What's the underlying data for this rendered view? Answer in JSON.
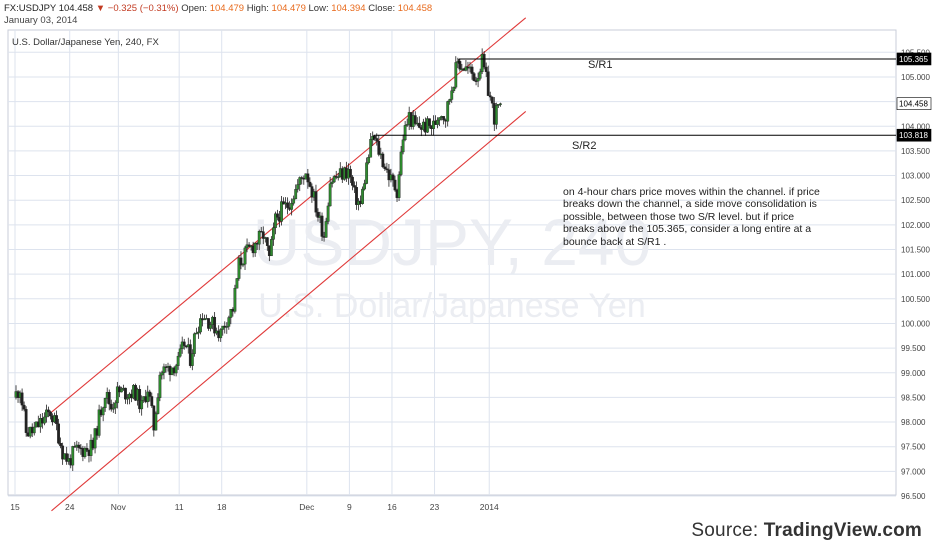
{
  "header": {
    "symbol": "FX:USDJPY",
    "last": "104.458",
    "change": "−0.325 (−0.31%)",
    "open_label": "Open:",
    "open": "104.479",
    "high_label": "High:",
    "high": "104.479",
    "low_label": "Low:",
    "low": "104.394",
    "close_label": "Close:",
    "close": "104.458",
    "date": "January 03, 2014"
  },
  "chart_title": "U.S. Dollar/Japanese Yen, 240, FX",
  "watermark": {
    "symbol": "USDJPY, 240",
    "name": "U.S. Dollar/Japanese Yen"
  },
  "annotations": {
    "sr1": "S/R1",
    "sr2": "S/R2",
    "note": "on 4-hour chars price moves within the channel. if price breaks down the channel, a side move consolidation is possible, between those two S/R level. but if price breaks above the 105.365, consider a long entire at a bounce back at S/R1 ."
  },
  "source": {
    "prefix": "Source: ",
    "brand": "TradingView.com"
  },
  "colors": {
    "up": "#2e8b2e",
    "down": "#222222",
    "channel": "#e03a3a",
    "grid": "#dde3ee",
    "price_tag": "#000000"
  },
  "chart_data": {
    "type": "candlestick",
    "timeframe": "240",
    "x_tick_labels": [
      "15",
      "24",
      "Nov",
      "11",
      "18",
      "Dec",
      "9",
      "16",
      "23",
      "2014"
    ],
    "y_tick_labels": [
      "105.500",
      "105.000",
      "104.500",
      "104.000",
      "103.500",
      "103.000",
      "102.500",
      "102.000",
      "101.500",
      "101.000",
      "100.500",
      "100.000",
      "99.500",
      "99.000",
      "98.500",
      "98.000",
      "97.500",
      "97.000",
      "96.500"
    ],
    "ylim": [
      96.5,
      105.5
    ],
    "grid": true,
    "price_labels": [
      "105.365",
      "104.458",
      "103.818"
    ],
    "levels": [
      {
        "name": "S/R1",
        "value": 105.365,
        "from_date": "2013-12-27"
      },
      {
        "name": "S/R2",
        "value": 103.818,
        "from_date": "2013-12-13"
      }
    ],
    "channel": {
      "upper": [
        {
          "date": "2013-10-21",
          "value": 98.2
        },
        {
          "date": "2014-01-07",
          "value": 106.2
        }
      ],
      "lower": [
        {
          "date": "2013-10-21",
          "value": 96.2
        },
        {
          "date": "2014-01-07",
          "value": 104.3
        }
      ]
    },
    "path": [
      {
        "date": "2013-10-15",
        "value": 98.5
      },
      {
        "date": "2013-10-16",
        "value": 98.7
      },
      {
        "date": "2013-10-17",
        "value": 97.8
      },
      {
        "date": "2013-10-18",
        "value": 97.8
      },
      {
        "date": "2013-10-21",
        "value": 98.2
      },
      {
        "date": "2013-10-22",
        "value": 97.9
      },
      {
        "date": "2013-10-23",
        "value": 97.4
      },
      {
        "date": "2013-10-24",
        "value": 97.2
      },
      {
        "date": "2013-10-25",
        "value": 97.4
      },
      {
        "date": "2013-10-28",
        "value": 97.5
      },
      {
        "date": "2013-10-29",
        "value": 98.1
      },
      {
        "date": "2013-10-30",
        "value": 98.6
      },
      {
        "date": "2013-10-31",
        "value": 98.3
      },
      {
        "date": "2013-11-01",
        "value": 98.6
      },
      {
        "date": "2013-11-04",
        "value": 98.6
      },
      {
        "date": "2013-11-05",
        "value": 98.3
      },
      {
        "date": "2013-11-06",
        "value": 98.7
      },
      {
        "date": "2013-11-07",
        "value": 97.9
      },
      {
        "date": "2013-11-08",
        "value": 99.0
      },
      {
        "date": "2013-11-11",
        "value": 99.2
      },
      {
        "date": "2013-11-12",
        "value": 99.6
      },
      {
        "date": "2013-11-13",
        "value": 99.3
      },
      {
        "date": "2013-11-14",
        "value": 99.9
      },
      {
        "date": "2013-11-15",
        "value": 100.2
      },
      {
        "date": "2013-11-18",
        "value": 99.8
      },
      {
        "date": "2013-11-19",
        "value": 100.1
      },
      {
        "date": "2013-11-20",
        "value": 100.3
      },
      {
        "date": "2013-11-21",
        "value": 101.2
      },
      {
        "date": "2013-11-22",
        "value": 101.4
      },
      {
        "date": "2013-11-25",
        "value": 101.8
      },
      {
        "date": "2013-11-26",
        "value": 101.3
      },
      {
        "date": "2013-11-27",
        "value": 102.1
      },
      {
        "date": "2013-11-28",
        "value": 102.3
      },
      {
        "date": "2013-11-29",
        "value": 102.4
      },
      {
        "date": "2013-12-02",
        "value": 103.1
      },
      {
        "date": "2013-12-03",
        "value": 102.7
      },
      {
        "date": "2013-12-04",
        "value": 102.2
      },
      {
        "date": "2013-12-05",
        "value": 101.8
      },
      {
        "date": "2013-12-06",
        "value": 102.9
      },
      {
        "date": "2013-12-09",
        "value": 103.1
      },
      {
        "date": "2013-12-10",
        "value": 102.6
      },
      {
        "date": "2013-12-11",
        "value": 102.4
      },
      {
        "date": "2013-12-12",
        "value": 103.2
      },
      {
        "date": "2013-12-13",
        "value": 103.8
      },
      {
        "date": "2013-12-16",
        "value": 102.9
      },
      {
        "date": "2013-12-17",
        "value": 102.7
      },
      {
        "date": "2013-12-18",
        "value": 103.8
      },
      {
        "date": "2013-12-19",
        "value": 104.2
      },
      {
        "date": "2013-12-20",
        "value": 104.0
      },
      {
        "date": "2013-12-23",
        "value": 104.0
      },
      {
        "date": "2013-12-24",
        "value": 104.3
      },
      {
        "date": "2013-12-25",
        "value": 104.2
      },
      {
        "date": "2013-12-26",
        "value": 104.8
      },
      {
        "date": "2013-12-27",
        "value": 105.3
      },
      {
        "date": "2013-12-30",
        "value": 105.0
      },
      {
        "date": "2013-12-31",
        "value": 105.3
      },
      {
        "date": "2014-01-02",
        "value": 104.2
      },
      {
        "date": "2014-01-03",
        "value": 104.458
      }
    ]
  }
}
